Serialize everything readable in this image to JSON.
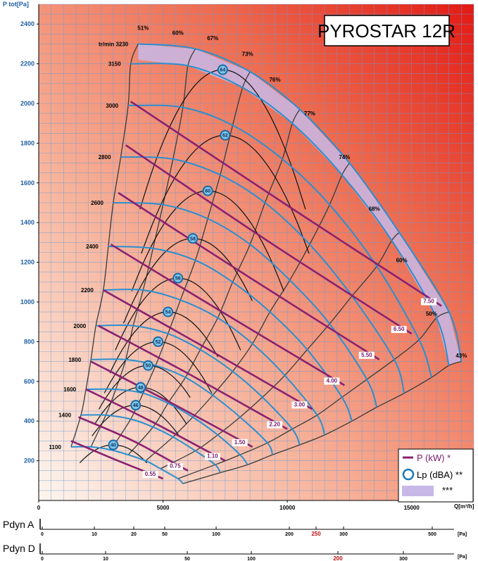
{
  "chart_data": {
    "type": "line",
    "title": "PYROSTAR 12R",
    "ylabel": "P tot[Pa]",
    "xlabel": "Q[m³/h]",
    "xlim": [
      0,
      17500
    ],
    "ylim": [
      0,
      2500
    ],
    "x_ticks": [
      0,
      5000,
      10000,
      15000
    ],
    "y_ticks": [
      200,
      400,
      600,
      800,
      1000,
      1200,
      1400,
      1600,
      1800,
      2000,
      2200,
      2400
    ],
    "speed_unit_label": "tr/min",
    "speed_curves": [
      {
        "label": "3230",
        "points": [
          [
            4000,
            2300
          ],
          [
            6300,
            2275
          ],
          [
            8500,
            2160
          ],
          [
            10500,
            1970
          ],
          [
            12500,
            1700
          ],
          [
            14500,
            1350
          ],
          [
            16500,
            950
          ],
          [
            17000,
            700
          ]
        ]
      },
      {
        "label": "3150",
        "points": [
          [
            3700,
            2200
          ],
          [
            6000,
            2190
          ],
          [
            8200,
            2080
          ],
          [
            10200,
            1900
          ],
          [
            12200,
            1640
          ],
          [
            14200,
            1310
          ],
          [
            16000,
            920
          ],
          [
            16500,
            680
          ]
        ]
      },
      {
        "label": "3000",
        "points": [
          [
            3600,
            1990
          ],
          [
            5800,
            1980
          ],
          [
            7800,
            1890
          ],
          [
            9800,
            1720
          ],
          [
            11700,
            1490
          ],
          [
            13600,
            1180
          ],
          [
            15300,
            810
          ],
          [
            15800,
            620
          ]
        ]
      },
      {
        "label": "2800",
        "points": [
          [
            3300,
            1730
          ],
          [
            5400,
            1720
          ],
          [
            7300,
            1640
          ],
          [
            9100,
            1500
          ],
          [
            10900,
            1290
          ],
          [
            12600,
            1030
          ],
          [
            14300,
            710
          ],
          [
            14700,
            540
          ]
        ]
      },
      {
        "label": "2600",
        "points": [
          [
            3000,
            1500
          ],
          [
            5000,
            1490
          ],
          [
            6800,
            1420
          ],
          [
            8500,
            1290
          ],
          [
            10100,
            1110
          ],
          [
            11700,
            890
          ],
          [
            13200,
            610
          ],
          [
            13600,
            470
          ]
        ]
      },
      {
        "label": "2400",
        "points": [
          [
            2800,
            1280
          ],
          [
            4600,
            1270
          ],
          [
            6300,
            1210
          ],
          [
            7800,
            1100
          ],
          [
            9300,
            950
          ],
          [
            10800,
            760
          ],
          [
            12200,
            520
          ],
          [
            12600,
            400
          ]
        ]
      },
      {
        "label": "2200",
        "points": [
          [
            2600,
            1060
          ],
          [
            4200,
            1060
          ],
          [
            5700,
            1010
          ],
          [
            7200,
            920
          ],
          [
            8600,
            790
          ],
          [
            9900,
            630
          ],
          [
            11200,
            430
          ],
          [
            11500,
            330
          ]
        ]
      },
      {
        "label": "2000",
        "points": [
          [
            2300,
            880
          ],
          [
            3800,
            880
          ],
          [
            5200,
            840
          ],
          [
            6500,
            760
          ],
          [
            7800,
            650
          ],
          [
            9000,
            520
          ],
          [
            10200,
            360
          ],
          [
            10500,
            280
          ]
        ]
      },
      {
        "label": "1800",
        "points": [
          [
            2100,
            710
          ],
          [
            3500,
            710
          ],
          [
            4700,
            680
          ],
          [
            5900,
            620
          ],
          [
            7000,
            530
          ],
          [
            8100,
            420
          ],
          [
            9200,
            290
          ],
          [
            9400,
            230
          ]
        ]
      },
      {
        "label": "1600",
        "points": [
          [
            1900,
            560
          ],
          [
            3100,
            560
          ],
          [
            4200,
            540
          ],
          [
            5200,
            490
          ],
          [
            6200,
            420
          ],
          [
            7200,
            330
          ],
          [
            8100,
            230
          ],
          [
            8400,
            180
          ]
        ]
      },
      {
        "label": "1400",
        "points": [
          [
            1700,
            430
          ],
          [
            2700,
            430
          ],
          [
            3700,
            410
          ],
          [
            4600,
            370
          ],
          [
            5400,
            320
          ],
          [
            6300,
            250
          ],
          [
            7100,
            180
          ],
          [
            7300,
            140
          ]
        ]
      },
      {
        "label": "1100",
        "points": [
          [
            1300,
            270
          ],
          [
            2100,
            270
          ],
          [
            2900,
            255
          ],
          [
            3600,
            230
          ],
          [
            4300,
            200
          ],
          [
            4900,
            160
          ],
          [
            5600,
            110
          ],
          [
            5800,
            85
          ]
        ]
      }
    ],
    "efficiency_labels": [
      "51%",
      "60%",
      "67%",
      "73%",
      "76%",
      "77%",
      "74%",
      "68%",
      "60%",
      "50%",
      "43%"
    ],
    "power_curves": [
      {
        "label": "0.55",
        "points": [
          [
            1300,
            300
          ],
          [
            3000,
            210
          ],
          [
            5000,
            110
          ]
        ]
      },
      {
        "label": "0.75",
        "points": [
          [
            1600,
            420
          ],
          [
            3800,
            300
          ],
          [
            6000,
            150
          ]
        ]
      },
      {
        "label": "1.10",
        "points": [
          [
            1900,
            560
          ],
          [
            4500,
            400
          ],
          [
            7500,
            200
          ]
        ]
      },
      {
        "label": "1.50",
        "points": [
          [
            2100,
            700
          ],
          [
            5200,
            500
          ],
          [
            8600,
            270
          ]
        ]
      },
      {
        "label": "2.20",
        "points": [
          [
            2400,
            880
          ],
          [
            6000,
            640
          ],
          [
            10000,
            360
          ]
        ]
      },
      {
        "label": "3.00",
        "points": [
          [
            2600,
            1060
          ],
          [
            6700,
            770
          ],
          [
            11000,
            460
          ]
        ]
      },
      {
        "label": "4.00",
        "points": [
          [
            2900,
            1290
          ],
          [
            7500,
            940
          ],
          [
            12300,
            580
          ]
        ]
      },
      {
        "label": "5.50",
        "points": [
          [
            3200,
            1550
          ],
          [
            8400,
            1130
          ],
          [
            13700,
            710
          ]
        ]
      },
      {
        "label": "6.50",
        "points": [
          [
            3500,
            1790
          ],
          [
            9300,
            1300
          ],
          [
            15000,
            840
          ]
        ]
      },
      {
        "label": "7.50",
        "points": [
          [
            3700,
            2010
          ],
          [
            10200,
            1470
          ],
          [
            16200,
            980
          ]
        ]
      }
    ],
    "sound_levels": [
      {
        "label": "64",
        "x": 7400,
        "y": 2170
      },
      {
        "label": "62",
        "x": 7500,
        "y": 1840
      },
      {
        "label": "60",
        "x": 6800,
        "y": 1560
      },
      {
        "label": "58",
        "x": 6200,
        "y": 1320
      },
      {
        "label": "56",
        "x": 5600,
        "y": 1120
      },
      {
        "label": "54",
        "x": 5200,
        "y": 950
      },
      {
        "label": "52",
        "x": 4800,
        "y": 800
      },
      {
        "label": "50",
        "x": 4400,
        "y": 680
      },
      {
        "label": "48",
        "x": 4100,
        "y": 570
      },
      {
        "label": "46",
        "x": 3900,
        "y": 480
      },
      {
        "label": "40",
        "x": 3000,
        "y": 280
      }
    ],
    "legend": [
      {
        "symbol": "power-line",
        "label": "P (kW) *",
        "color": "#8b2070"
      },
      {
        "symbol": "sound-circle",
        "label": "Lp (dBA) **",
        "color": "#1a7ab5"
      },
      {
        "symbol": "shaded-zone",
        "label": "***",
        "color": "#c8b8e8"
      }
    ]
  },
  "pdyn_a": {
    "title": "Pdyn A",
    "unit": "[Pa]",
    "ticks": [
      "0",
      "10",
      "20",
      "50",
      "100",
      "200",
      "250",
      "300",
      "500"
    ],
    "highlight": "250"
  },
  "pdyn_d": {
    "title": "Pdyn D",
    "unit": "[Pa]",
    "ticks": [
      "0",
      "10",
      "50",
      "100",
      "200",
      "300"
    ],
    "highlight": "200"
  },
  "colors": {
    "grid": "#6a9ad0",
    "speed": "#2a8fd0",
    "efficiency": "#101010",
    "power": "#8b2070",
    "zone": "#c8b8e8"
  }
}
